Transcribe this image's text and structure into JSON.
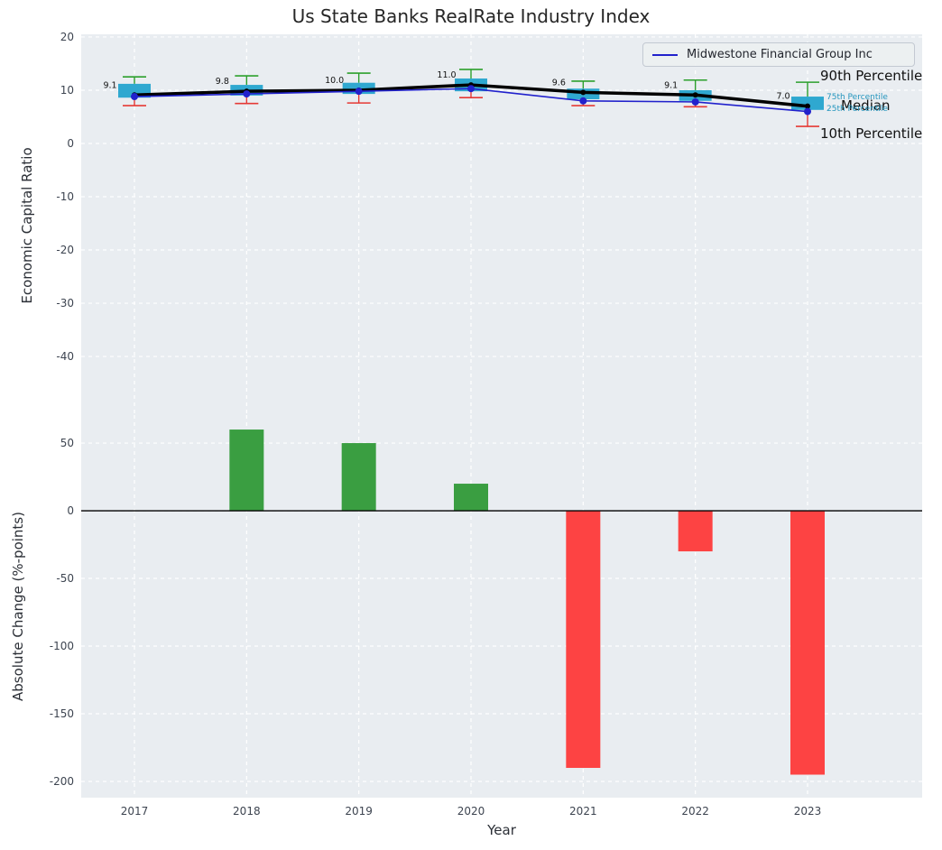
{
  "title": "Us State Banks RealRate Industry Index",
  "annotations": {
    "p90": "90th Percentile",
    "p75": "75th Percentile",
    "median": "Median",
    "p25": "25th Percentile",
    "p10": "10th Percentile"
  },
  "colors": {
    "panel_bg": "#e9edf1",
    "grid": "#ffffff",
    "box": "#2fa8d0",
    "p90": "#2ca02c",
    "p10": "#e53935",
    "median_line": "#000000",
    "company_line": "#2121cc",
    "bar_positive": "#3a9e41",
    "bar_negative": "#fd4343",
    "tick_label": "#3d4450",
    "annotation_teal": "#2596be"
  },
  "chart_data": [
    {
      "type": "line",
      "subtype": "percentile-band-boxes-with-lines",
      "title": "Us State Banks RealRate Industry Index",
      "ylabel": "Economic Capital Ratio",
      "ylim": [
        -51,
        20.5
      ],
      "yticks": [
        20,
        10,
        0,
        -10,
        -20,
        -30,
        -40
      ],
      "grid": true,
      "legend_position": "upper right",
      "categories": [
        "2017",
        "2018",
        "2019",
        "2020",
        "2021",
        "2022",
        "2023"
      ],
      "percentiles": {
        "p90": [
          12.5,
          12.7,
          13.2,
          13.9,
          11.7,
          11.9,
          11.5
        ],
        "p75": [
          11.2,
          11.0,
          11.4,
          12.2,
          10.3,
          10.0,
          8.8
        ],
        "median": [
          9.1,
          9.8,
          10.0,
          11.0,
          9.6,
          9.1,
          7.0
        ],
        "p25": [
          8.6,
          9.0,
          9.3,
          9.8,
          8.3,
          8.0,
          6.3
        ],
        "p10": [
          7.1,
          7.5,
          7.6,
          8.6,
          7.1,
          6.9,
          3.2
        ]
      },
      "median_labels": [
        "9.1",
        "9.8",
        "10.0",
        "11.0",
        "9.6",
        "9.1",
        "7.0"
      ],
      "series": [
        {
          "name": "Midwestone Financial Group Inc",
          "values": [
            8.8,
            9.3,
            9.8,
            10.3,
            8.0,
            7.8,
            6.0
          ]
        }
      ]
    },
    {
      "type": "bar",
      "title": "",
      "xlabel": "Year",
      "ylabel": "Absolute Change (%-points)",
      "ylim": [
        -212,
        70.7
      ],
      "yticks": [
        50,
        0,
        -50,
        -100,
        -150,
        -200
      ],
      "grid": true,
      "categories": [
        "2017",
        "2018",
        "2019",
        "2020",
        "2021",
        "2022",
        "2023"
      ],
      "values": [
        0,
        60,
        50,
        20,
        -190,
        -30,
        -195
      ]
    }
  ]
}
